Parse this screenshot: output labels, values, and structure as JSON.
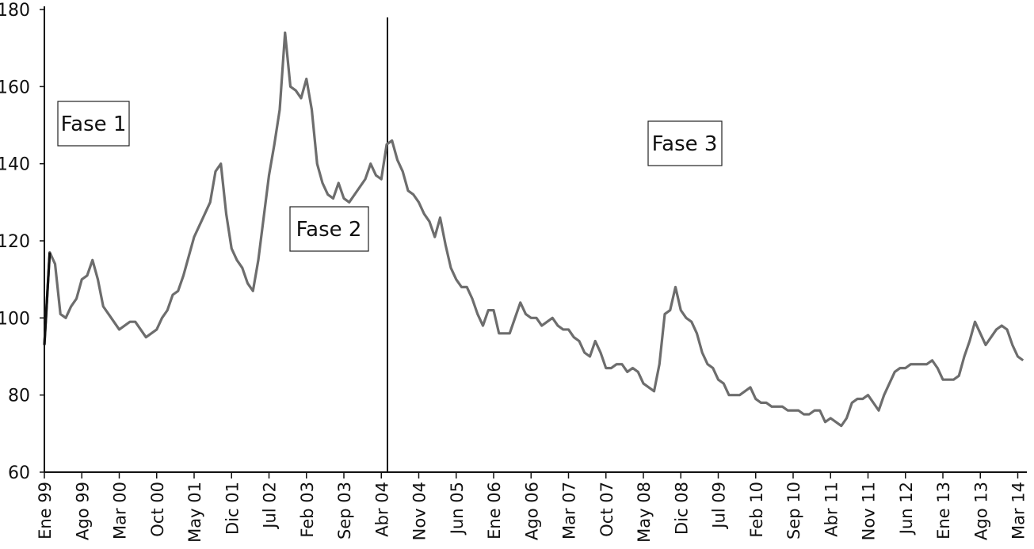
{
  "chart_data": {
    "type": "line",
    "title": "",
    "xlabel": "",
    "ylabel": "",
    "ylim": [
      60,
      180
    ],
    "yticks": [
      60,
      80,
      100,
      120,
      140,
      160,
      180
    ],
    "grid": false,
    "x_tick_labels": [
      "Ene 99",
      "Ago 99",
      "Mar 00",
      "Oct 00",
      "May 01",
      "Dic 01",
      "Jul 02",
      "Feb 03",
      "Sep 03",
      "Abr 04",
      "Nov 04",
      "Jun 05",
      "Ene 06",
      "Ago 06",
      "Mar 07",
      "Oct 07",
      "May 08",
      "Dic 08",
      "Jul 09",
      "Feb 10",
      "Sep 10",
      "Abr 11",
      "Nov 11",
      "Jun 12",
      "Ene 13",
      "Ago 13",
      "Mar 14"
    ],
    "tick_step_months": 7,
    "series_color": "#6d6d6d",
    "series": [
      {
        "values": [
          93,
          117,
          114,
          101,
          100,
          103,
          105,
          110,
          111,
          115,
          110,
          103,
          101,
          99,
          97,
          98,
          99,
          99,
          97,
          95,
          96,
          97,
          100,
          102,
          106,
          107,
          111,
          116,
          121,
          124,
          127,
          130,
          138,
          140,
          127,
          118,
          115,
          113,
          109,
          107,
          115,
          126,
          137,
          145,
          154,
          174,
          160,
          159,
          157,
          162,
          154,
          140,
          135,
          132,
          131,
          135,
          131,
          130,
          132,
          134,
          136,
          140,
          137,
          136,
          145,
          146,
          141,
          138,
          133,
          132,
          130,
          127,
          125,
          121,
          126,
          119,
          113,
          110,
          108,
          108,
          105,
          101,
          98,
          102,
          102,
          96,
          96,
          96,
          100,
          104,
          101,
          100,
          100,
          98,
          99,
          100,
          98,
          97,
          97,
          95,
          94,
          91,
          90,
          94,
          91,
          87,
          87,
          88,
          88,
          86,
          87,
          86,
          83,
          82,
          81,
          88,
          101,
          102,
          108,
          102,
          100,
          99,
          96,
          91,
          88,
          87,
          84,
          83,
          80,
          80,
          80,
          81,
          82,
          79,
          78,
          78,
          77,
          77,
          77,
          76,
          76,
          76,
          75,
          75,
          76,
          76,
          73,
          74,
          73,
          72,
          74,
          78,
          79,
          79,
          80,
          78,
          76,
          80,
          83,
          86,
          87,
          87,
          88,
          88,
          88,
          88,
          89,
          87,
          84,
          84,
          84,
          85,
          90,
          94,
          99,
          96,
          93,
          95,
          97,
          98,
          97,
          93,
          90,
          89
        ]
      }
    ],
    "phase_dividers_month_index": [
      0,
      64
    ],
    "annotations": [
      {
        "id": "fase1",
        "text": "Fase 1"
      },
      {
        "id": "fase2",
        "text": "Fase 2"
      },
      {
        "id": "fase3",
        "text": "Fase 3"
      }
    ]
  }
}
